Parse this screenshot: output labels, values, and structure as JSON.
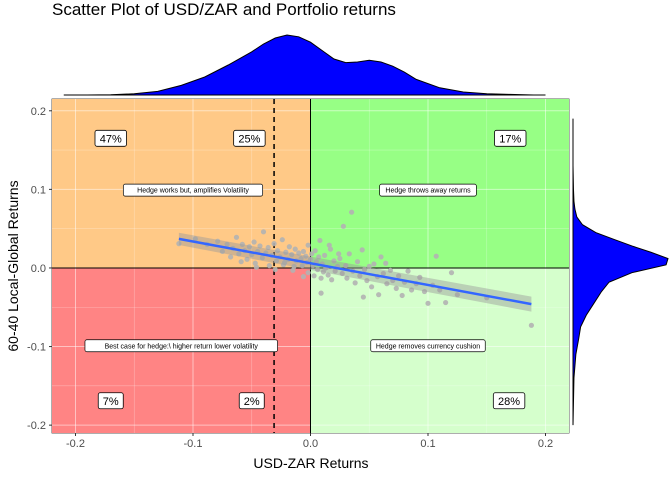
{
  "chart_data": {
    "type": "scatter",
    "title": "Scatter Plot of USD/ZAR and Portfolio returns",
    "xlabel": "USD-ZAR Returns",
    "ylabel": "60-40 Local-Global Returns",
    "xlim": [
      -0.22,
      0.22
    ],
    "ylim": [
      -0.21,
      0.215
    ],
    "x_ticks": [
      -0.2,
      -0.1,
      0.0,
      0.1,
      0.2
    ],
    "x_tick_labels": [
      "-0.2",
      "-0.1",
      "0.0",
      "0.1",
      "0.2"
    ],
    "y_ticks": [
      -0.2,
      -0.1,
      0.0,
      0.1,
      0.2
    ],
    "y_tick_labels": [
      "-0.2",
      "-0.1",
      "0.0",
      "0.1",
      "0.2"
    ],
    "grid": true,
    "quadrants": [
      {
        "xrange": [
          -0.22,
          0.0
        ],
        "yrange": [
          0.0,
          0.215
        ],
        "color": "#FFC987"
      },
      {
        "xrange": [
          0.0,
          0.22
        ],
        "yrange": [
          0.0,
          0.215
        ],
        "color": "#97FF85"
      },
      {
        "xrange": [
          -0.22,
          0.0
        ],
        "yrange": [
          -0.21,
          0.0
        ],
        "color": "#FF8484"
      },
      {
        "xrange": [
          0.0,
          0.22
        ],
        "yrange": [
          -0.21,
          0.0
        ],
        "color": "#D5FFCC"
      }
    ],
    "percent_labels": [
      {
        "x": -0.17,
        "y": 0.165,
        "text": "47%"
      },
      {
        "x": -0.052,
        "y": 0.165,
        "text": "25%"
      },
      {
        "x": 0.17,
        "y": 0.165,
        "text": "17%"
      },
      {
        "x": -0.17,
        "y": -0.169,
        "text": "7%"
      },
      {
        "x": -0.05,
        "y": -0.169,
        "text": "2%"
      },
      {
        "x": 0.169,
        "y": -0.169,
        "text": "28%"
      }
    ],
    "annotations": [
      {
        "x": -0.1,
        "y": 0.099,
        "text": "Hedge works but, amplifies Volatility"
      },
      {
        "x": 0.1,
        "y": 0.099,
        "text": "Hedge throws away returns"
      },
      {
        "x": -0.11,
        "y": -0.099,
        "text": "Best case for hedge:\\ higher return lower volatility"
      },
      {
        "x": 0.1,
        "y": -0.099,
        "text": "Hedge removes currency cushion"
      }
    ],
    "vline_dashed_x": -0.031,
    "regression": {
      "x0": -0.112,
      "y0": 0.037,
      "x1": 0.188,
      "y1": -0.046,
      "band": 0.006,
      "color": "#3366FF"
    },
    "points": [
      [
        -0.112,
        0.031
      ],
      [
        -0.098,
        0.037
      ],
      [
        -0.088,
        0.03
      ],
      [
        -0.079,
        0.034
      ],
      [
        -0.075,
        0.021
      ],
      [
        -0.071,
        0.03
      ],
      [
        -0.068,
        0.014
      ],
      [
        -0.066,
        0.025
      ],
      [
        -0.063,
        0.039
      ],
      [
        -0.061,
        0.018
      ],
      [
        -0.058,
        0.03
      ],
      [
        -0.056,
        0.022
      ],
      [
        -0.054,
        0.011
      ],
      [
        -0.052,
        0.027
      ],
      [
        -0.05,
        0.017
      ],
      [
        -0.048,
        0.033
      ],
      [
        -0.047,
        0.006
      ],
      [
        -0.045,
        0.021
      ],
      [
        -0.043,
        0.028
      ],
      [
        -0.041,
        0.013
      ],
      [
        -0.04,
        0.046
      ],
      [
        -0.038,
        0.019
      ],
      [
        -0.036,
        0.026
      ],
      [
        -0.035,
        0.003
      ],
      [
        -0.033,
        0.016
      ],
      [
        -0.031,
        0.031
      ],
      [
        -0.029,
        0.009
      ],
      [
        -0.028,
        0.022
      ],
      [
        -0.026,
        0.014
      ],
      [
        -0.024,
        0.036
      ],
      [
        -0.023,
        0.004
      ],
      [
        -0.021,
        0.02
      ],
      [
        -0.019,
        0.011
      ],
      [
        -0.018,
        0.027
      ],
      [
        -0.016,
        0.017
      ],
      [
        -0.015,
        -0.003
      ],
      [
        -0.013,
        0.024
      ],
      [
        -0.012,
        0.009
      ],
      [
        -0.01,
        0.019
      ],
      [
        -0.008,
        0.012
      ],
      [
        -0.007,
        0.003
      ],
      [
        -0.006,
        0.021
      ],
      [
        -0.004,
        0.015
      ],
      [
        -0.003,
        0.007
      ],
      [
        -0.002,
        -0.006
      ],
      [
        0.0,
        0.011
      ],
      [
        0.001,
        0.018
      ],
      [
        0.002,
        0.003
      ],
      [
        0.003,
        -0.01
      ],
      [
        0.004,
        0.022
      ],
      [
        0.005,
        0.008
      ],
      [
        0.006,
        -0.002
      ],
      [
        0.007,
        0.014
      ],
      [
        0.009,
        -0.013
      ],
      [
        0.01,
        0.005
      ],
      [
        0.011,
        -0.005
      ],
      [
        0.012,
        0.016
      ],
      [
        0.014,
        0.001
      ],
      [
        0.015,
        -0.009
      ],
      [
        0.016,
        0.029
      ],
      [
        0.018,
        -0.015
      ],
      [
        0.02,
        0.009
      ],
      [
        0.021,
        -0.004
      ],
      [
        0.023,
        0.002
      ],
      [
        0.025,
        0.012
      ],
      [
        0.027,
        -0.007
      ],
      [
        0.028,
        0.053
      ],
      [
        0.03,
        0.003
      ],
      [
        0.031,
        -0.013
      ],
      [
        0.033,
        0.018
      ],
      [
        0.035,
        0.071
      ],
      [
        0.036,
        -0.004
      ],
      [
        0.038,
        -0.019
      ],
      [
        0.04,
        0.008
      ],
      [
        0.042,
        -0.01
      ],
      [
        0.044,
        0.023
      ],
      [
        0.046,
        -0.002
      ],
      [
        0.048,
        -0.016
      ],
      [
        0.05,
        0.002
      ],
      [
        0.052,
        -0.024
      ],
      [
        0.054,
        0.005
      ],
      [
        0.057,
        -0.011
      ],
      [
        0.06,
        0.014
      ],
      [
        0.062,
        -0.007
      ],
      [
        0.065,
        -0.02
      ],
      [
        0.068,
        -0.003
      ],
      [
        0.07,
        -0.016
      ],
      [
        0.073,
        -0.026
      ],
      [
        0.075,
        -0.01
      ],
      [
        0.078,
        -0.035
      ],
      [
        0.08,
        -0.018
      ],
      [
        0.083,
        -0.004
      ],
      [
        0.086,
        -0.028
      ],
      [
        0.09,
        -0.02
      ],
      [
        0.093,
        -0.012
      ],
      [
        0.097,
        -0.03
      ],
      [
        0.1,
        -0.045
      ],
      [
        0.104,
        -0.022
      ],
      [
        0.107,
        0.015
      ],
      [
        0.11,
        -0.028
      ],
      [
        0.115,
        -0.044
      ],
      [
        0.12,
        -0.006
      ],
      [
        0.125,
        -0.034
      ],
      [
        0.15,
        -0.038
      ],
      [
        0.188,
        -0.073
      ],
      [
        -0.006,
        -0.011
      ],
      [
        -0.002,
        0.029
      ],
      [
        0.008,
        0.035
      ],
      [
        -0.022,
        0.007
      ],
      [
        -0.014,
        0.002
      ],
      [
        -0.03,
        -0.002
      ],
      [
        -0.046,
        0.001
      ],
      [
        -0.059,
        0.008
      ],
      [
        0.017,
        0.024
      ],
      [
        0.024,
        0.018
      ],
      [
        0.064,
        0.006
      ],
      [
        0.058,
        -0.034
      ],
      [
        0.045,
        -0.037
      ],
      [
        0.009,
        -0.032
      ],
      [
        0.013,
        0.0
      ]
    ]
  },
  "marginal_top": {
    "xs": [
      -0.21,
      -0.19,
      -0.17,
      -0.15,
      -0.13,
      -0.11,
      -0.09,
      -0.07,
      -0.05,
      -0.04,
      -0.03,
      -0.02,
      -0.01,
      0.0,
      0.01,
      0.02,
      0.03,
      0.04,
      0.05,
      0.06,
      0.07,
      0.08,
      0.09,
      0.11,
      0.13,
      0.15,
      0.17,
      0.19,
      0.2
    ],
    "ds": [
      0.0,
      0.0,
      0.005,
      0.02,
      0.06,
      0.16,
      0.3,
      0.5,
      0.72,
      0.85,
      0.95,
      1.0,
      0.97,
      0.88,
      0.74,
      0.6,
      0.54,
      0.55,
      0.58,
      0.55,
      0.48,
      0.38,
      0.26,
      0.12,
      0.05,
      0.02,
      0.01,
      0.0,
      0.0
    ],
    "fill": "#0000FF"
  },
  "marginal_right": {
    "ys": [
      -0.2,
      -0.17,
      -0.14,
      -0.11,
      -0.09,
      -0.075,
      -0.06,
      -0.045,
      -0.03,
      -0.018,
      -0.006,
      0.004,
      0.012,
      0.02,
      0.028,
      0.036,
      0.045,
      0.055,
      0.065,
      0.075,
      0.085,
      0.1,
      0.13,
      0.16,
      0.19
    ],
    "ds": [
      0.0,
      0.005,
      0.01,
      0.03,
      0.06,
      0.08,
      0.14,
      0.22,
      0.3,
      0.38,
      0.62,
      0.98,
      1.0,
      0.82,
      0.62,
      0.44,
      0.24,
      0.1,
      0.04,
      0.02,
      0.01,
      0.005,
      0.0,
      0.0,
      0.0
    ],
    "fill": "#0000FF"
  }
}
